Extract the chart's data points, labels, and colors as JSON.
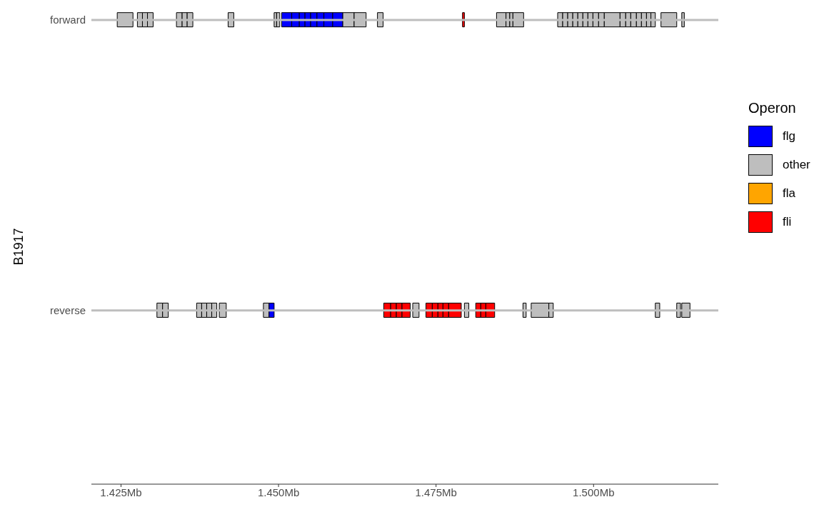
{
  "chart_data": {
    "type": "bar",
    "orientation": "horizontal",
    "ylabel": "B1917",
    "legend_title": "Operon",
    "legend": "right",
    "categories": [
      "forward",
      "reverse"
    ],
    "xlim": [
      1.4203,
      1.5198
    ],
    "xticks": [
      {
        "value": 1.425,
        "label": "1.425Mb"
      },
      {
        "value": 1.45,
        "label": "1.450Mb"
      },
      {
        "value": 1.475,
        "label": "1.475Mb"
      },
      {
        "value": 1.5,
        "label": "1.500Mb"
      }
    ],
    "series": [
      {
        "name": "flg",
        "color": "#0000ff",
        "values": [
          null,
          null
        ]
      },
      {
        "name": "other",
        "color": "#bebebe",
        "values": [
          null,
          null
        ]
      },
      {
        "name": "fla",
        "color": "#ffa500",
        "values": [
          null,
          null
        ]
      },
      {
        "name": "fli",
        "color": "#ff0000",
        "values": [
          null,
          null
        ]
      },
      {
        "color": "#bebebe",
        "base": [
          1.4244,
          null
        ],
        "values": [
          0.0025,
          null
        ]
      },
      {
        "color": "#bebebe",
        "base": [
          1.4276,
          null
        ],
        "values": [
          0.0008,
          null
        ]
      },
      {
        "color": "#bebebe",
        "base": [
          1.4284,
          null
        ],
        "values": [
          0.0008,
          null
        ]
      },
      {
        "color": "#bebebe",
        "base": [
          1.4292,
          null
        ],
        "values": [
          0.0009,
          null
        ]
      },
      {
        "color": "#bebebe",
        "base": [
          1.4338,
          null
        ],
        "values": [
          0.0009,
          null
        ]
      },
      {
        "color": "#bebebe",
        "base": [
          1.4347,
          null
        ],
        "values": [
          0.0008,
          null
        ]
      },
      {
        "color": "#bebebe",
        "base": [
          1.4355,
          null
        ],
        "values": [
          0.0009,
          null
        ]
      },
      {
        "color": "#bebebe",
        "base": [
          1.442,
          null
        ],
        "values": [
          0.0009,
          null
        ]
      },
      {
        "color": "#bebebe",
        "base": [
          1.4493,
          null
        ],
        "values": [
          0.0004,
          null
        ]
      },
      {
        "color": "#bebebe",
        "base": [
          1.4497,
          null
        ],
        "values": [
          0.0005,
          null
        ]
      },
      {
        "color": "#0000ff",
        "base": [
          1.4505,
          null
        ],
        "values": [
          0.0016,
          null
        ]
      },
      {
        "color": "#0000ff",
        "base": [
          1.4521,
          null
        ],
        "values": [
          0.0012,
          null
        ]
      },
      {
        "color": "#0000ff",
        "base": [
          1.4533,
          null
        ],
        "values": [
          0.0009,
          null
        ]
      },
      {
        "color": "#0000ff",
        "base": [
          1.4542,
          null
        ],
        "values": [
          0.0009,
          null
        ]
      },
      {
        "color": "#0000ff",
        "base": [
          1.4551,
          null
        ],
        "values": [
          0.001,
          null
        ]
      },
      {
        "color": "#0000ff",
        "base": [
          1.4561,
          null
        ],
        "values": [
          0.0011,
          null
        ]
      },
      {
        "color": "#0000ff",
        "base": [
          1.4572,
          null
        ],
        "values": [
          0.0014,
          null
        ]
      },
      {
        "color": "#0000ff",
        "base": [
          1.4586,
          null
        ],
        "values": [
          0.0016,
          null
        ]
      },
      {
        "color": "#bebebe",
        "base": [
          1.4602,
          null
        ],
        "values": [
          0.0018,
          null
        ]
      },
      {
        "color": "#bebebe",
        "base": [
          1.462,
          null
        ],
        "values": [
          0.0019,
          null
        ]
      },
      {
        "color": "#bebebe",
        "base": [
          1.4657,
          null
        ],
        "values": [
          0.0009,
          null
        ]
      },
      {
        "color": "#ff0000",
        "base": [
          1.4792,
          null
        ],
        "values": [
          0.0003,
          null
        ]
      },
      {
        "color": "#bebebe",
        "base": [
          1.4846,
          null
        ],
        "values": [
          0.0015,
          null
        ]
      },
      {
        "color": "#bebebe",
        "base": [
          1.4861,
          null
        ],
        "values": [
          0.0006,
          null
        ]
      },
      {
        "color": "#bebebe",
        "base": [
          1.4867,
          null
        ],
        "values": [
          0.0005,
          null
        ]
      },
      {
        "color": "#bebebe",
        "base": [
          1.4872,
          null
        ],
        "values": [
          0.0017,
          null
        ]
      },
      {
        "color": "#bebebe",
        "base": [
          1.4943,
          null
        ],
        "values": [
          0.0008,
          null
        ]
      },
      {
        "color": "#bebebe",
        "base": [
          1.4951,
          null
        ],
        "values": [
          0.0008,
          null
        ]
      },
      {
        "color": "#bebebe",
        "base": [
          1.4959,
          null
        ],
        "values": [
          0.0008,
          null
        ]
      },
      {
        "color": "#bebebe",
        "base": [
          1.4967,
          null
        ],
        "values": [
          0.0008,
          null
        ]
      },
      {
        "color": "#bebebe",
        "base": [
          1.4975,
          null
        ],
        "values": [
          0.0008,
          null
        ]
      },
      {
        "color": "#bebebe",
        "base": [
          1.4983,
          null
        ],
        "values": [
          0.0008,
          null
        ]
      },
      {
        "color": "#bebebe",
        "base": [
          1.4991,
          null
        ],
        "values": [
          0.0008,
          null
        ]
      },
      {
        "color": "#bebebe",
        "base": [
          1.4999,
          null
        ],
        "values": [
          0.0009,
          null
        ]
      },
      {
        "color": "#bebebe",
        "base": [
          1.5008,
          null
        ],
        "values": [
          0.0009,
          null
        ]
      },
      {
        "color": "#bebebe",
        "base": [
          1.5017,
          null
        ],
        "values": [
          0.0025,
          null
        ]
      },
      {
        "color": "#bebebe",
        "base": [
          1.5042,
          null
        ],
        "values": [
          0.0009,
          null
        ]
      },
      {
        "color": "#bebebe",
        "base": [
          1.5051,
          null
        ],
        "values": [
          0.0008,
          null
        ]
      },
      {
        "color": "#bebebe",
        "base": [
          1.5059,
          null
        ],
        "values": [
          0.0009,
          null
        ]
      },
      {
        "color": "#bebebe",
        "base": [
          1.5068,
          null
        ],
        "values": [
          0.0008,
          null
        ]
      },
      {
        "color": "#bebebe",
        "base": [
          1.5076,
          null
        ],
        "values": [
          0.0008,
          null
        ]
      },
      {
        "color": "#bebebe",
        "base": [
          1.5084,
          null
        ],
        "values": [
          0.0007,
          null
        ]
      },
      {
        "color": "#bebebe",
        "base": [
          1.5091,
          null
        ],
        "values": [
          0.0007,
          null
        ]
      },
      {
        "color": "#bebebe",
        "base": [
          1.5107,
          null
        ],
        "values": [
          0.0025,
          null
        ]
      },
      {
        "color": "#bebebe",
        "base": [
          1.514,
          null
        ],
        "values": [
          0.0004,
          null
        ]
      },
      {
        "color": "#bebebe",
        "base": [
          null,
          1.4307
        ],
        "values": [
          null,
          0.0009
        ]
      },
      {
        "color": "#bebebe",
        "base": [
          null,
          1.4316
        ],
        "values": [
          null,
          0.0009
        ]
      },
      {
        "color": "#bebebe",
        "base": [
          null,
          1.437
        ],
        "values": [
          null,
          0.0008
        ]
      },
      {
        "color": "#bebebe",
        "base": [
          null,
          1.4378
        ],
        "values": [
          null,
          0.0008
        ]
      },
      {
        "color": "#bebebe",
        "base": [
          null,
          1.4386
        ],
        "values": [
          null,
          0.0008
        ]
      },
      {
        "color": "#bebebe",
        "base": [
          null,
          1.4394
        ],
        "values": [
          null,
          0.0008
        ]
      },
      {
        "color": "#bebebe",
        "base": [
          null,
          1.4406
        ],
        "values": [
          null,
          0.0011
        ]
      },
      {
        "color": "#bebebe",
        "base": [
          null,
          1.4476
        ],
        "values": [
          null,
          0.0009
        ]
      },
      {
        "color": "#0000ff",
        "base": [
          null,
          1.4485
        ],
        "values": [
          null,
          0.0008
        ]
      },
      {
        "color": "#ff0000",
        "base": [
          null,
          1.4667
        ],
        "values": [
          null,
          0.0011
        ]
      },
      {
        "color": "#ff0000",
        "base": [
          null,
          1.4678
        ],
        "values": [
          null,
          0.0009
        ]
      },
      {
        "color": "#ff0000",
        "base": [
          null,
          1.4687
        ],
        "values": [
          null,
          0.0009
        ]
      },
      {
        "color": "#ff0000",
        "base": [
          null,
          1.4696
        ],
        "values": [
          null,
          0.0013
        ]
      },
      {
        "color": "#bebebe",
        "base": [
          null,
          1.4713
        ],
        "values": [
          null,
          0.001
        ]
      },
      {
        "color": "#ff0000",
        "base": [
          null,
          1.4734
        ],
        "values": [
          null,
          0.001
        ]
      },
      {
        "color": "#ff0000",
        "base": [
          null,
          1.4744
        ],
        "values": [
          null,
          0.0009
        ]
      },
      {
        "color": "#ff0000",
        "base": [
          null,
          1.4753
        ],
        "values": [
          null,
          0.0008
        ]
      },
      {
        "color": "#ff0000",
        "base": [
          null,
          1.4761
        ],
        "values": [
          null,
          0.0009
        ]
      },
      {
        "color": "#ff0000",
        "base": [
          null,
          1.477
        ],
        "values": [
          null,
          0.002
        ]
      },
      {
        "color": "#bebebe",
        "base": [
          null,
          1.4795
        ],
        "values": [
          null,
          0.0007
        ]
      },
      {
        "color": "#ff0000",
        "base": [
          null,
          1.4813
        ],
        "values": [
          null,
          0.0008
        ]
      },
      {
        "color": "#ff0000",
        "base": [
          null,
          1.4821
        ],
        "values": [
          null,
          0.0008
        ]
      },
      {
        "color": "#ff0000",
        "base": [
          null,
          1.4829
        ],
        "values": [
          null,
          0.0014
        ]
      },
      {
        "color": "#bebebe",
        "base": [
          null,
          1.4888
        ],
        "values": [
          null,
          0.0005
        ]
      },
      {
        "color": "#bebebe",
        "base": [
          null,
          1.4901
        ],
        "values": [
          null,
          0.0028
        ]
      },
      {
        "color": "#bebebe",
        "base": [
          null,
          1.4929
        ],
        "values": [
          null,
          0.0007
        ]
      },
      {
        "color": "#bebebe",
        "base": [
          null,
          1.5098
        ],
        "values": [
          null,
          0.0007
        ]
      },
      {
        "color": "#bebebe",
        "base": [
          null,
          1.5132
        ],
        "values": [
          null,
          0.0006
        ]
      },
      {
        "color": "#bebebe",
        "base": [
          null,
          1.514
        ],
        "values": [
          null,
          0.0013
        ]
      }
    ]
  }
}
